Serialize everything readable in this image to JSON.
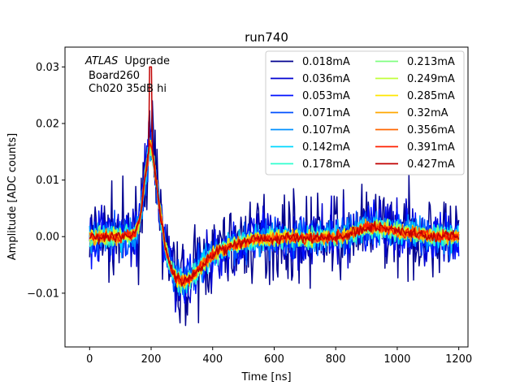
{
  "chart_data": {
    "type": "line",
    "title": "run740",
    "xlabel": "Time [ns]",
    "ylabel": "Amplitude [ADC counts]",
    "xlim": [
      -80,
      1230
    ],
    "ylim": [
      -0.0195,
      0.0335
    ],
    "xticks": [
      0,
      200,
      400,
      600,
      800,
      1000,
      1200
    ],
    "xtick_labels": [
      "0",
      "200",
      "400",
      "600",
      "800",
      "1000",
      "1200"
    ],
    "yticks": [
      -0.01,
      0.0,
      0.01,
      0.02,
      0.03
    ],
    "ytick_labels": [
      "−0.01",
      "0.00",
      "0.01",
      "0.02",
      "0.03"
    ],
    "grid": false,
    "legend_placement": "top-right",
    "legend_columns": 2,
    "annotations": {
      "atlas": "ATLAS",
      "upgrade": "Upgrade",
      "board": "Board260",
      "channel": "Ch020 35dB hi"
    },
    "template_shape": {
      "x": [
        0,
        100,
        150,
        165,
        180,
        195,
        205,
        215,
        230,
        250,
        270,
        290,
        310,
        330,
        350,
        380,
        420,
        480,
        550,
        650,
        750,
        820,
        860,
        900,
        930,
        960,
        1000,
        1060,
        1120,
        1200
      ],
      "y": [
        0.0,
        0.0,
        0.0005,
        0.0035,
        0.0105,
        0.016,
        0.0148,
        0.0105,
        0.004,
        -0.003,
        -0.0065,
        -0.0078,
        -0.008,
        -0.0072,
        -0.006,
        -0.0042,
        -0.0025,
        -0.0012,
        -0.0004,
        -0.0001,
        -0.0002,
        0.0,
        0.0008,
        0.0016,
        0.0018,
        0.0015,
        0.001,
        0.0005,
        0.0001,
        0.0
      ]
    },
    "series": [
      {
        "name": "0.018mA",
        "color": "#00008f",
        "noise": 0.0037
      },
      {
        "name": "0.036mA",
        "color": "#0000d0",
        "noise": 0.0026
      },
      {
        "name": "0.053mA",
        "color": "#0010ff",
        "noise": 0.0021
      },
      {
        "name": "0.071mA",
        "color": "#0050ff",
        "noise": 0.0018
      },
      {
        "name": "0.107mA",
        "color": "#0090ff",
        "noise": 0.0014
      },
      {
        "name": "0.142mA",
        "color": "#00d8ff",
        "noise": 0.0011
      },
      {
        "name": "0.178mA",
        "color": "#30ffcf",
        "noise": 0.0009
      },
      {
        "name": "0.213mA",
        "color": "#7fff80",
        "noise": 0.0008
      },
      {
        "name": "0.249mA",
        "color": "#c0ff3a",
        "noise": 0.0007
      },
      {
        "name": "0.285mA",
        "color": "#ffe600",
        "noise": 0.0006
      },
      {
        "name": "0.32mA",
        "color": "#ffa800",
        "noise": 0.0006
      },
      {
        "name": "0.356mA",
        "color": "#ff6600",
        "noise": 0.0005
      },
      {
        "name": "0.391mA",
        "color": "#ff2000",
        "noise": 0.0005
      },
      {
        "name": "0.427mA",
        "color": "#c00000",
        "noise": 0.0005
      }
    ]
  }
}
